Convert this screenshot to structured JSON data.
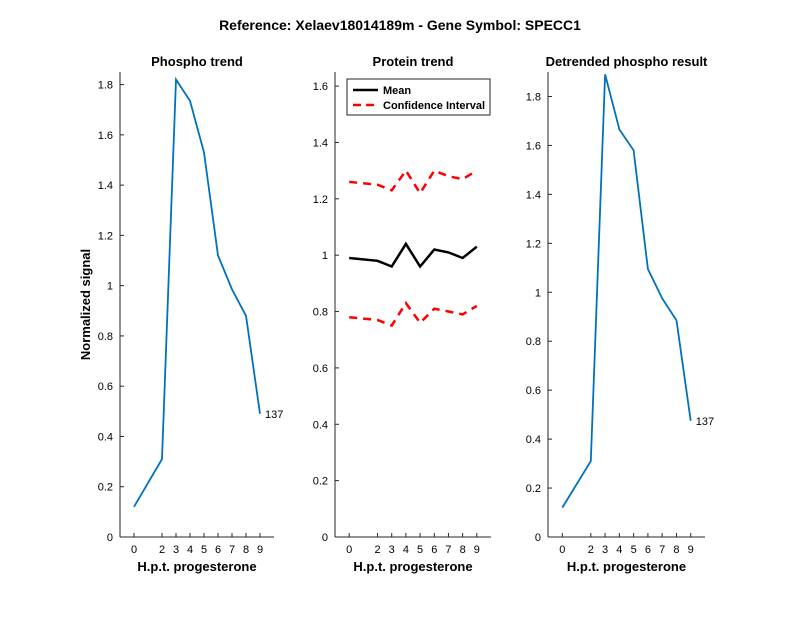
{
  "figure": {
    "title": "Reference:  Xelaev18014189m - Gene Symbol:  SPECC1"
  },
  "chart_data": [
    {
      "type": "line",
      "title": "Phospho trend",
      "xlabel": "H.p.t. progesterone",
      "ylabel": "Normalized signal",
      "x": [
        0,
        2,
        3,
        4,
        5,
        6,
        7,
        8,
        9
      ],
      "xticks": [
        "0",
        "2",
        "3",
        "4",
        "5",
        "6",
        "7",
        "8",
        "9"
      ],
      "ylim": [
        0,
        1.85
      ],
      "yticks": [
        "0",
        "0.2",
        "0.4",
        "0.6",
        "0.8",
        "1",
        "1.2",
        "1.4",
        "1.6",
        "1.8"
      ],
      "series": [
        {
          "values": [
            0.12,
            0.31,
            1.82,
            1.735,
            1.53,
            1.12,
            0.985,
            0.88,
            0.49
          ],
          "color": "#0072bd",
          "style": "solid"
        }
      ],
      "end_label": "137",
      "grid": false,
      "legend": null
    },
    {
      "type": "line",
      "title": "Protein trend",
      "xlabel": "H.p.t. progesterone",
      "ylabel": "",
      "x": [
        0,
        2,
        3,
        4,
        5,
        6,
        7,
        8,
        9
      ],
      "xticks": [
        "0",
        "2",
        "3",
        "4",
        "5",
        "6",
        "7",
        "8",
        "9"
      ],
      "ylim": [
        0,
        1.65
      ],
      "yticks": [
        "0",
        "0.2",
        "0.4",
        "0.6",
        "0.8",
        "1",
        "1.2",
        "1.4",
        "1.6"
      ],
      "series": [
        {
          "name": "Mean",
          "values": [
            0.99,
            0.98,
            0.96,
            1.04,
            0.96,
            1.02,
            1.01,
            0.99,
            1.03
          ],
          "color": "#000000",
          "style": "solid"
        },
        {
          "name": "Confidence Interval",
          "values": [
            1.26,
            1.25,
            1.23,
            1.3,
            1.22,
            1.3,
            1.28,
            1.27,
            1.3
          ],
          "color": "#ff0000",
          "style": "dashed"
        },
        {
          "values": [
            0.78,
            0.77,
            0.75,
            0.83,
            0.76,
            0.81,
            0.8,
            0.79,
            0.82
          ],
          "color": "#ff0000",
          "style": "dashed"
        }
      ],
      "legend_entries": [
        "Mean",
        "Confidence Interval"
      ],
      "grid": false,
      "legend": "top-left"
    },
    {
      "type": "line",
      "title": "Detrended phospho result",
      "xlabel": "H.p.t. progesterone",
      "ylabel": "",
      "x": [
        0,
        2,
        3,
        4,
        5,
        6,
        7,
        8,
        9
      ],
      "xticks": [
        "0",
        "2",
        "3",
        "4",
        "5",
        "6",
        "7",
        "8",
        "9"
      ],
      "ylim": [
        0,
        1.9
      ],
      "yticks": [
        "0",
        "0.2",
        "0.4",
        "0.6",
        "0.8",
        "1",
        "1.2",
        "1.4",
        "1.6",
        "1.8"
      ],
      "series": [
        {
          "values": [
            0.12,
            0.31,
            1.89,
            1.665,
            1.58,
            1.095,
            0.975,
            0.885,
            0.475
          ],
          "color": "#0072bd",
          "style": "solid"
        }
      ],
      "end_label": "137",
      "grid": false,
      "legend": null
    }
  ]
}
